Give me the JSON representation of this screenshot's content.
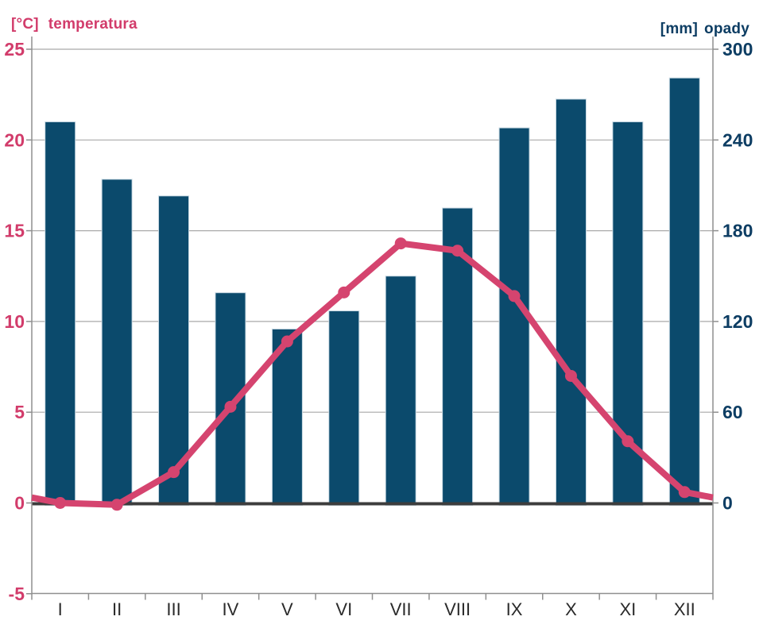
{
  "axis_titles": {
    "left_unit": "[°C]",
    "left_name": "temperatura",
    "right_unit": "[mm]",
    "right_name": "opady"
  },
  "chart_data": {
    "type": "combo",
    "subtype": "climograph (bar = precipitation, line = temperature)",
    "categories": [
      "I",
      "II",
      "III",
      "IV",
      "V",
      "VI",
      "VII",
      "VIII",
      "IX",
      "X",
      "XI",
      "XII"
    ],
    "series": [
      {
        "name": "opady",
        "type": "bar",
        "axis": "right",
        "unit": "mm",
        "values": [
          252,
          214,
          203,
          139,
          115,
          127,
          150,
          195,
          248,
          267,
          252,
          281
        ]
      },
      {
        "name": "temperatura",
        "type": "line",
        "axis": "left",
        "unit": "°C",
        "values": [
          0.0,
          -0.1,
          1.7,
          5.3,
          8.9,
          11.6,
          14.3,
          13.9,
          11.4,
          7.0,
          3.4,
          0.6
        ],
        "edge_left": 0.3,
        "edge_right": 0.3
      }
    ],
    "left_axis": {
      "title": "[°C] temperatura",
      "ticks": [
        25,
        20,
        15,
        10,
        5,
        0,
        -5
      ],
      "min": -5,
      "max": 25
    },
    "right_axis": {
      "title": "[mm] opady",
      "ticks": [
        300,
        240,
        180,
        120,
        60,
        0
      ],
      "min": 0,
      "max": 300
    },
    "grid": true,
    "legend": false,
    "style": {
      "bar_color": "#0b4a6c",
      "bar_edge_color": "#c9d9e3",
      "line_color": "#d5446f",
      "left_text_color": "#d23c6b",
      "right_text_color": "#0d3d63",
      "month_text_color": "#2a2a2a",
      "grid_color": "#a9a9a9",
      "axis_color": "#8f8f8f",
      "zero_line_color": "#3d3d3d"
    }
  }
}
